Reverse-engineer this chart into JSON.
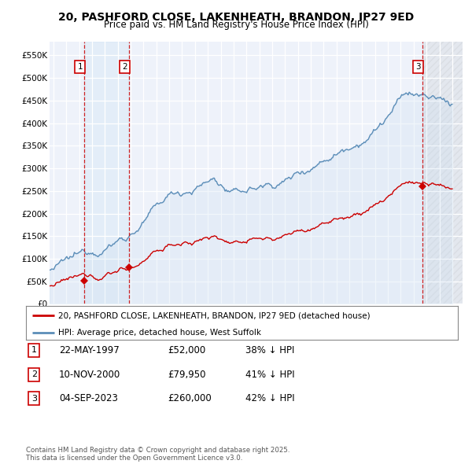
{
  "title": "20, PASHFORD CLOSE, LAKENHEATH, BRANDON, IP27 9ED",
  "subtitle": "Price paid vs. HM Land Registry's House Price Index (HPI)",
  "title_fontsize": 10,
  "subtitle_fontsize": 8.5,
  "ylabel_ticks": [
    "£0",
    "£50K",
    "£100K",
    "£150K",
    "£200K",
    "£250K",
    "£300K",
    "£350K",
    "£400K",
    "£450K",
    "£500K",
    "£550K"
  ],
  "ytick_vals": [
    0,
    50000,
    100000,
    150000,
    200000,
    250000,
    300000,
    350000,
    400000,
    450000,
    500000,
    550000
  ],
  "ylim": [
    0,
    580000
  ],
  "xlim_start": 1994.7,
  "xlim_end": 2026.8,
  "background_color": "#ffffff",
  "plot_bg_color": "#eef2fa",
  "grid_color": "#ffffff",
  "sale_points": [
    {
      "date_num": 1997.38,
      "price": 52000,
      "label": "1"
    },
    {
      "date_num": 2000.86,
      "price": 79950,
      "label": "2"
    },
    {
      "date_num": 2023.67,
      "price": 260000,
      "label": "3"
    }
  ],
  "sale_dashed_color": "#cc0000",
  "sale_line_color": "#cc0000",
  "hpi_line_color": "#5b8db8",
  "hpi_fill_color": "#c8ddf0",
  "shade_between_12_color": "#d0e4f5",
  "legend_sale_label": "20, PASHFORD CLOSE, LAKENHEATH, BRANDON, IP27 9ED (detached house)",
  "legend_hpi_label": "HPI: Average price, detached house, West Suffolk",
  "table_rows": [
    {
      "num": "1",
      "date": "22-MAY-1997",
      "price": "£52,000",
      "pct": "38% ↓ HPI"
    },
    {
      "num": "2",
      "date": "10-NOV-2000",
      "price": "£79,950",
      "pct": "41% ↓ HPI"
    },
    {
      "num": "3",
      "date": "04-SEP-2023",
      "price": "£260,000",
      "pct": "42% ↓ HPI"
    }
  ],
  "footnote": "Contains HM Land Registry data © Crown copyright and database right 2025.\nThis data is licensed under the Open Government Licence v3.0."
}
